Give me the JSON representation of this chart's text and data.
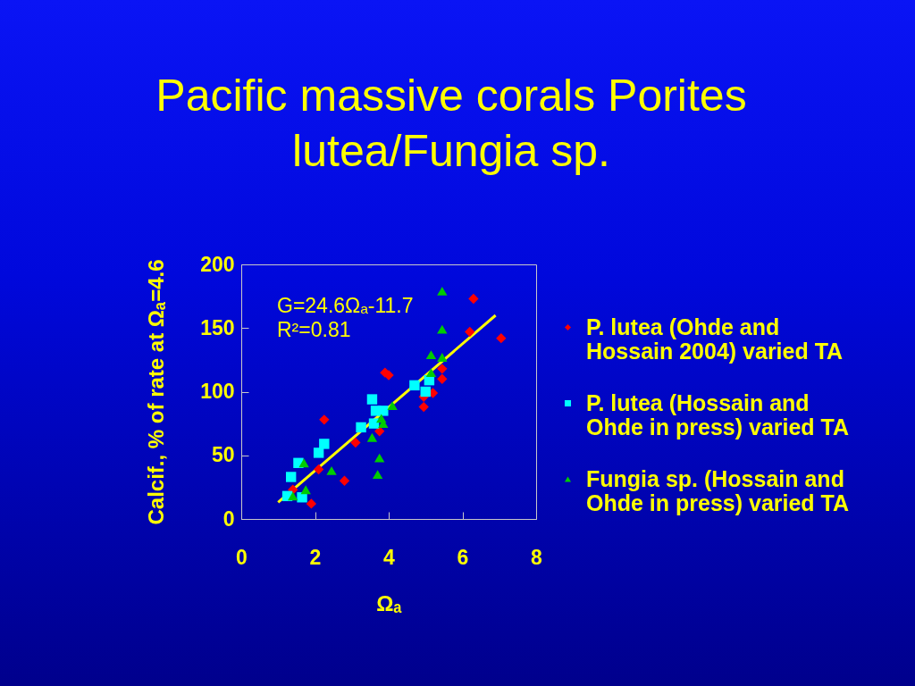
{
  "chart_data": {
    "type": "scatter",
    "title": "Pacific massive corals Porites lutea/Fungia sp.",
    "xlabel": "Ωₐ",
    "ylabel": "Calcif., % of rate at Ωₐ=4.6",
    "annotations": [
      "G=24.6Ωₐ-11.7",
      "R²=0.81"
    ],
    "xlim": [
      0,
      8
    ],
    "ylim": [
      0,
      200
    ],
    "xticks": [
      0,
      2,
      4,
      6,
      8
    ],
    "yticks": [
      0,
      50,
      100,
      150,
      200
    ],
    "legend": "right",
    "series": [
      {
        "name": "P. lutea (Ohde and Hossain 2004) varied TA",
        "color": "#ff0000",
        "marker": "diamond",
        "x": [
          1.4,
          1.9,
          2.1,
          2.25,
          2.8,
          3.1,
          3.75,
          3.9,
          4.0,
          4.95,
          4.95,
          5.2,
          5.45,
          5.45,
          6.2,
          6.3,
          7.05
        ],
        "values": [
          23,
          12,
          39,
          78,
          30,
          60,
          69,
          115,
          113,
          96,
          88,
          99,
          110,
          118,
          147,
          173,
          142
        ]
      },
      {
        "name": "P. lutea (Hossain and Ohde in press) varied TA",
        "color": "#00ffff",
        "marker": "square",
        "x": [
          1.25,
          1.35,
          1.55,
          1.65,
          2.1,
          2.25,
          3.25,
          3.55,
          3.6,
          3.65,
          3.85,
          4.7,
          5.0,
          5.1
        ],
        "values": [
          18,
          33,
          44,
          17,
          52,
          59,
          72,
          94,
          75,
          85,
          85,
          105,
          100,
          109
        ]
      },
      {
        "name": "Fungia sp. (Hossain and Ohde in press) varied TA",
        "color": "#00cc00",
        "marker": "triangle",
        "x": [
          1.4,
          1.7,
          1.75,
          2.45,
          3.55,
          3.7,
          3.75,
          3.8,
          3.85,
          4.1,
          5.15,
          5.15,
          5.45,
          5.45,
          5.45
        ],
        "values": [
          18,
          44,
          23,
          38,
          64,
          35,
          48,
          79,
          75,
          89,
          115,
          129,
          127,
          149,
          179
        ]
      },
      {
        "type": "line",
        "color": "#ffff00",
        "marker": "none",
        "x": [
          1.0,
          6.9
        ],
        "values": [
          13,
          160
        ]
      }
    ]
  }
}
